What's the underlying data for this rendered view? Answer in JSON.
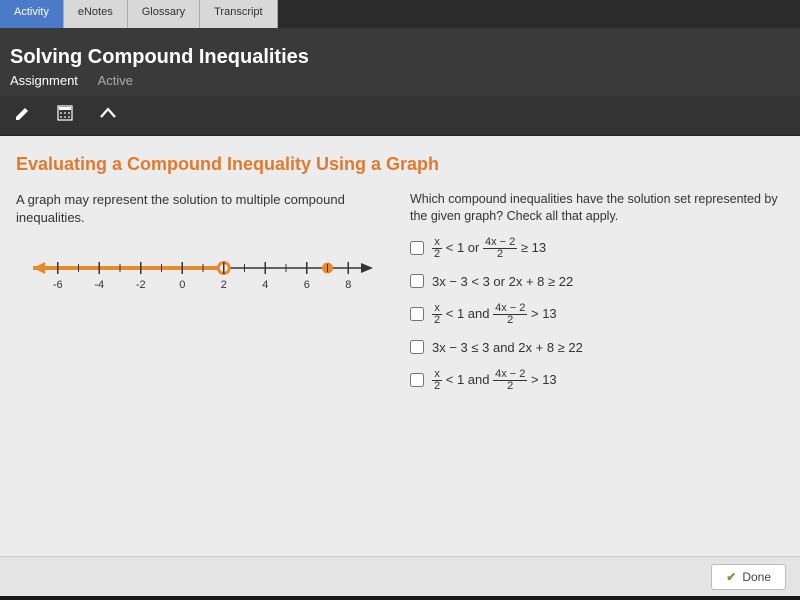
{
  "tabs": {
    "activity": "Activity",
    "enotes": "eNotes",
    "glossary": "Glossary",
    "transcript": "Transcript"
  },
  "header": {
    "title": "Solving Compound Inequalities",
    "assignment_label": "Assignment",
    "status": "Active"
  },
  "content": {
    "title": "Evaluating a Compound Inequality Using a Graph",
    "left_text": "A graph may represent the solution to multiple compound inequalities.",
    "right_text": "Which compound inequalities have the solution set represented by the given graph? Check all that apply."
  },
  "numberline": {
    "min": -7,
    "max": 9,
    "ticks": [
      -6,
      -4,
      -2,
      0,
      2,
      4,
      6,
      8
    ],
    "ray_end": 2,
    "ray_open": true,
    "point_at": 7,
    "point_closed": true,
    "line_color": "#e68a2e",
    "tick_color": "#333333",
    "bg": "#ececec"
  },
  "options": [
    {
      "type": "frac-or",
      "a_num": "x",
      "a_den": "2",
      "a_rel": "< 1",
      "join": "or",
      "b_num": "4x − 2",
      "b_den": "2",
      "b_rel": "≥ 13"
    },
    {
      "type": "plain",
      "text": "3x − 3 < 3 or 2x + 8 ≥ 22"
    },
    {
      "type": "frac-and",
      "a_num": "x",
      "a_den": "2",
      "a_rel": "< 1",
      "join": "and",
      "b_num": "4x − 2",
      "b_den": "2",
      "b_rel": "> 13"
    },
    {
      "type": "plain",
      "text": "3x − 3 ≤ 3 and 2x + 8 ≥ 22"
    },
    {
      "type": "frac-and",
      "a_num": "x",
      "a_den": "2",
      "a_rel": "< 1",
      "join": "and",
      "b_num": "4x − 2",
      "b_den": "2",
      "b_rel": "> 13"
    }
  ],
  "footer": {
    "done": "Done"
  }
}
